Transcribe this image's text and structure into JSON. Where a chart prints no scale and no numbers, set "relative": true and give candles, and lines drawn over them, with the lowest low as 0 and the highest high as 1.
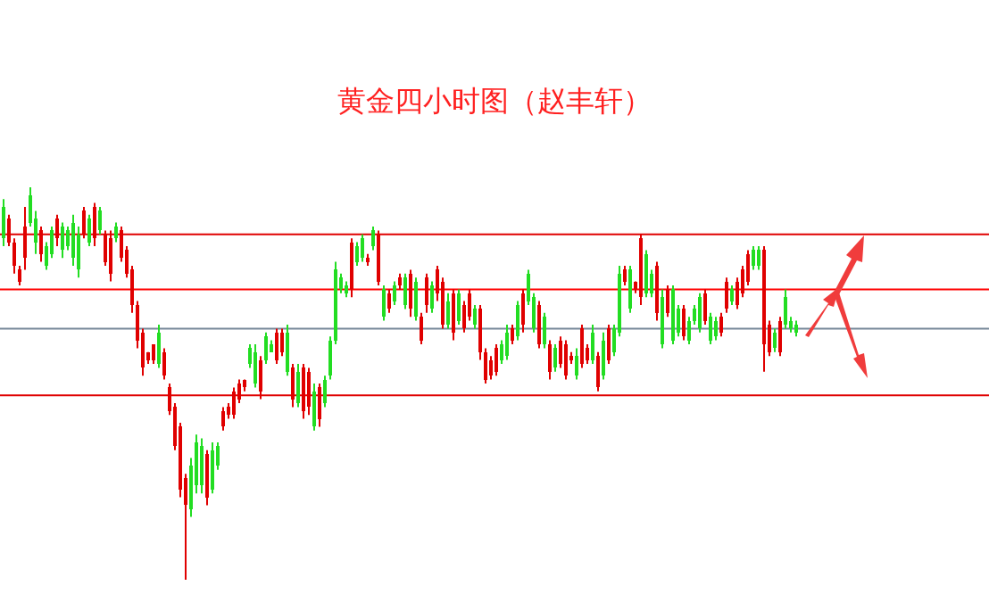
{
  "chart_data": {
    "type": "candlestick",
    "title": "黄金四小时图（赵丰轩）",
    "relative": true,
    "categories": [
      null,
      null,
      null,
      null,
      null,
      null,
      null,
      null,
      null,
      null,
      null,
      null,
      null,
      null,
      null,
      null,
      null,
      null,
      null,
      null,
      null,
      null,
      null,
      null,
      null,
      null,
      null,
      null,
      null,
      null,
      null,
      null,
      null,
      null,
      null,
      null,
      null,
      null,
      null,
      null,
      null,
      null,
      null,
      null,
      null,
      null,
      null,
      null,
      null,
      null,
      null,
      null,
      null,
      null,
      null,
      null,
      null,
      null,
      null,
      null,
      null,
      null,
      null,
      null,
      null,
      null,
      null,
      null,
      null,
      null,
      null,
      null,
      null,
      null,
      null,
      null,
      null,
      null,
      null,
      null,
      null,
      null,
      null,
      null,
      null,
      null,
      null,
      null,
      null,
      null,
      null,
      null,
      null,
      null,
      null,
      null,
      null,
      null,
      null,
      null,
      null,
      null,
      null,
      null,
      null,
      null,
      null,
      null,
      null,
      null,
      null,
      null,
      null,
      null,
      null,
      null,
      null,
      null,
      null,
      null,
      null,
      null,
      null,
      null,
      null,
      null,
      null,
      null,
      null,
      null,
      null,
      null,
      null,
      null,
      null,
      null,
      null,
      null,
      null,
      null,
      null,
      null,
      null,
      null,
      null,
      null,
      null,
      null,
      null
    ],
    "ohlc": [
      [
        0.87,
        0.97,
        0.85,
        0.95
      ],
      [
        0.92,
        0.93,
        0.85,
        0.86
      ],
      [
        0.86,
        0.87,
        0.78,
        0.8
      ],
      [
        0.79,
        0.8,
        0.75,
        0.76
      ],
      [
        0.9,
        0.95,
        0.79,
        0.82
      ],
      [
        0.91,
        1.0,
        0.9,
        0.98
      ],
      [
        0.86,
        0.94,
        0.83,
        0.92
      ],
      [
        0.89,
        0.9,
        0.81,
        0.83
      ],
      [
        0.8,
        0.86,
        0.79,
        0.85
      ],
      [
        0.83,
        0.9,
        0.82,
        0.89
      ],
      [
        0.92,
        0.93,
        0.85,
        0.87
      ],
      [
        0.84,
        0.91,
        0.82,
        0.9
      ],
      [
        0.85,
        0.9,
        0.84,
        0.89
      ],
      [
        0.82,
        0.93,
        0.8,
        0.91
      ],
      [
        0.79,
        0.9,
        0.77,
        0.88
      ],
      [
        0.94,
        0.95,
        0.87,
        0.88
      ],
      [
        0.86,
        0.93,
        0.85,
        0.92
      ],
      [
        0.95,
        0.96,
        0.85,
        0.87
      ],
      [
        0.89,
        0.95,
        0.88,
        0.94
      ],
      [
        0.88,
        0.89,
        0.8,
        0.81
      ],
      [
        0.87,
        0.89,
        0.76,
        0.78
      ],
      [
        0.87,
        0.91,
        0.86,
        0.9
      ],
      [
        0.89,
        0.9,
        0.81,
        0.82
      ],
      [
        0.84,
        0.85,
        0.77,
        0.78
      ],
      [
        0.79,
        0.8,
        0.68,
        0.7
      ],
      [
        0.7,
        0.71,
        0.59,
        0.61
      ],
      [
        0.63,
        0.64,
        0.52,
        0.54
      ],
      [
        0.58,
        0.58,
        0.55,
        0.56
      ],
      [
        0.6,
        0.6,
        0.55,
        0.56
      ],
      [
        0.55,
        0.65,
        0.54,
        0.63
      ],
      [
        0.58,
        0.59,
        0.51,
        0.52
      ],
      [
        0.49,
        0.5,
        0.42,
        0.43
      ],
      [
        0.44,
        0.45,
        0.33,
        0.34
      ],
      [
        0.39,
        0.4,
        0.21,
        0.23
      ],
      [
        0.26,
        0.27,
        0.0,
        0.19
      ],
      [
        0.18,
        0.31,
        0.16,
        0.29
      ],
      [
        0.24,
        0.37,
        0.22,
        0.35
      ],
      [
        0.24,
        0.36,
        0.22,
        0.34
      ],
      [
        0.32,
        0.33,
        0.19,
        0.21
      ],
      [
        0.23,
        0.35,
        0.22,
        0.33
      ],
      [
        0.29,
        0.35,
        0.28,
        0.34
      ],
      [
        0.43,
        0.44,
        0.38,
        0.39
      ],
      [
        0.44,
        0.45,
        0.41,
        0.42
      ],
      [
        0.48,
        0.49,
        0.41,
        0.42
      ],
      [
        0.5,
        0.51,
        0.45,
        0.46
      ],
      [
        0.51,
        0.51,
        0.48,
        0.49
      ],
      [
        0.55,
        0.6,
        0.54,
        0.59
      ],
      [
        0.5,
        0.6,
        0.49,
        0.58
      ],
      [
        0.56,
        0.57,
        0.46,
        0.48
      ],
      [
        0.56,
        0.63,
        0.55,
        0.62
      ],
      [
        0.58,
        0.61,
        0.58,
        0.6
      ],
      [
        0.63,
        0.64,
        0.55,
        0.56
      ],
      [
        0.63,
        0.64,
        0.57,
        0.58
      ],
      [
        0.53,
        0.65,
        0.52,
        0.63
      ],
      [
        0.54,
        0.55,
        0.44,
        0.46
      ],
      [
        0.45,
        0.55,
        0.44,
        0.53
      ],
      [
        0.54,
        0.55,
        0.41,
        0.43
      ],
      [
        0.53,
        0.54,
        0.42,
        0.44
      ],
      [
        0.39,
        0.5,
        0.38,
        0.48
      ],
      [
        0.49,
        0.5,
        0.39,
        0.41
      ],
      [
        0.45,
        0.52,
        0.44,
        0.51
      ],
      [
        0.52,
        0.62,
        0.51,
        0.61
      ],
      [
        0.61,
        0.81,
        0.6,
        0.79
      ],
      [
        0.74,
        0.78,
        0.73,
        0.77
      ],
      [
        0.73,
        0.76,
        0.72,
        0.75
      ],
      [
        0.86,
        0.87,
        0.72,
        0.74
      ],
      [
        0.81,
        0.86,
        0.8,
        0.85
      ],
      [
        0.82,
        0.88,
        0.81,
        0.87
      ],
      [
        0.82,
        0.83,
        0.8,
        0.81
      ],
      [
        0.85,
        0.9,
        0.84,
        0.89
      ],
      [
        0.88,
        0.89,
        0.75,
        0.76
      ],
      [
        0.67,
        0.75,
        0.66,
        0.74
      ],
      [
        0.73,
        0.74,
        0.68,
        0.69
      ],
      [
        0.71,
        0.76,
        0.7,
        0.75
      ],
      [
        0.77,
        0.78,
        0.74,
        0.75
      ],
      [
        0.7,
        0.78,
        0.69,
        0.77
      ],
      [
        0.78,
        0.79,
        0.67,
        0.69
      ],
      [
        0.67,
        0.77,
        0.66,
        0.76
      ],
      [
        0.67,
        0.68,
        0.6,
        0.61
      ],
      [
        0.77,
        0.78,
        0.68,
        0.7
      ],
      [
        0.69,
        0.76,
        0.68,
        0.75
      ],
      [
        0.79,
        0.8,
        0.71,
        0.73
      ],
      [
        0.76,
        0.77,
        0.64,
        0.65
      ],
      [
        0.65,
        0.73,
        0.64,
        0.71
      ],
      [
        0.73,
        0.74,
        0.61,
        0.63
      ],
      [
        0.66,
        0.74,
        0.65,
        0.73
      ],
      [
        0.7,
        0.71,
        0.63,
        0.64
      ],
      [
        0.73,
        0.74,
        0.66,
        0.67
      ],
      [
        0.65,
        0.7,
        0.64,
        0.69
      ],
      [
        0.69,
        0.7,
        0.56,
        0.58
      ],
      [
        0.58,
        0.59,
        0.5,
        0.51
      ],
      [
        0.56,
        0.57,
        0.51,
        0.52
      ],
      [
        0.59,
        0.6,
        0.52,
        0.53
      ],
      [
        0.56,
        0.61,
        0.55,
        0.6
      ],
      [
        0.57,
        0.65,
        0.56,
        0.63
      ],
      [
        0.64,
        0.65,
        0.6,
        0.61
      ],
      [
        0.62,
        0.71,
        0.61,
        0.7
      ],
      [
        0.73,
        0.74,
        0.63,
        0.65
      ],
      [
        0.71,
        0.79,
        0.7,
        0.78
      ],
      [
        0.64,
        0.73,
        0.63,
        0.72
      ],
      [
        0.7,
        0.71,
        0.59,
        0.6
      ],
      [
        0.6,
        0.68,
        0.59,
        0.67
      ],
      [
        0.6,
        0.61,
        0.51,
        0.53
      ],
      [
        0.54,
        0.6,
        0.53,
        0.59
      ],
      [
        0.61,
        0.62,
        0.54,
        0.55
      ],
      [
        0.6,
        0.61,
        0.51,
        0.52
      ],
      [
        0.57,
        0.58,
        0.55,
        0.56
      ],
      [
        0.52,
        0.59,
        0.51,
        0.57
      ],
      [
        0.64,
        0.65,
        0.54,
        0.55
      ],
      [
        0.59,
        0.6,
        0.55,
        0.56
      ],
      [
        0.56,
        0.65,
        0.55,
        0.63
      ],
      [
        0.57,
        0.58,
        0.48,
        0.49
      ],
      [
        0.52,
        0.63,
        0.51,
        0.61
      ],
      [
        0.64,
        0.65,
        0.55,
        0.56
      ],
      [
        0.58,
        0.65,
        0.57,
        0.64
      ],
      [
        0.63,
        0.8,
        0.62,
        0.78
      ],
      [
        0.79,
        0.8,
        0.75,
        0.76
      ],
      [
        0.69,
        0.8,
        0.68,
        0.79
      ],
      [
        0.76,
        0.76,
        0.73,
        0.74
      ],
      [
        0.87,
        0.88,
        0.7,
        0.72
      ],
      [
        0.73,
        0.84,
        0.72,
        0.83
      ],
      [
        0.73,
        0.79,
        0.72,
        0.78
      ],
      [
        0.8,
        0.81,
        0.66,
        0.68
      ],
      [
        0.6,
        0.74,
        0.59,
        0.72
      ],
      [
        0.74,
        0.75,
        0.67,
        0.68
      ],
      [
        0.61,
        0.75,
        0.6,
        0.74
      ],
      [
        0.63,
        0.7,
        0.62,
        0.69
      ],
      [
        0.69,
        0.7,
        0.61,
        0.62
      ],
      [
        0.61,
        0.67,
        0.6,
        0.66
      ],
      [
        0.66,
        0.7,
        0.65,
        0.69
      ],
      [
        0.64,
        0.73,
        0.63,
        0.72
      ],
      [
        0.73,
        0.74,
        0.65,
        0.66
      ],
      [
        0.61,
        0.68,
        0.6,
        0.67
      ],
      [
        0.62,
        0.67,
        0.61,
        0.66
      ],
      [
        0.67,
        0.68,
        0.62,
        0.63
      ],
      [
        0.76,
        0.77,
        0.68,
        0.69
      ],
      [
        0.71,
        0.75,
        0.7,
        0.74
      ],
      [
        0.76,
        0.77,
        0.69,
        0.7
      ],
      [
        0.79,
        0.8,
        0.72,
        0.73
      ],
      [
        0.83,
        0.84,
        0.75,
        0.76
      ],
      [
        0.8,
        0.85,
        0.79,
        0.84
      ],
      [
        0.8,
        0.85,
        0.79,
        0.84
      ],
      [
        0.84,
        0.85,
        0.53,
        0.6
      ],
      [
        0.65,
        0.66,
        0.57,
        0.58
      ],
      [
        0.59,
        0.64,
        0.58,
        0.63
      ],
      [
        0.66,
        0.67,
        0.57,
        0.58
      ],
      [
        0.65,
        0.74,
        0.64,
        0.72
      ],
      [
        0.64,
        0.67,
        0.63,
        0.66
      ],
      [
        0.63,
        0.66,
        0.62,
        0.65
      ]
    ],
    "ref_lines": [
      {
        "axis": "y",
        "value": 0.88,
        "color": "#e00000"
      },
      {
        "axis": "y",
        "value": 0.74,
        "color": "#ff0000"
      },
      {
        "axis": "y",
        "value": 0.64,
        "color": "#778899"
      },
      {
        "axis": "y",
        "value": 0.47,
        "color": "#e00000"
      }
    ]
  }
}
